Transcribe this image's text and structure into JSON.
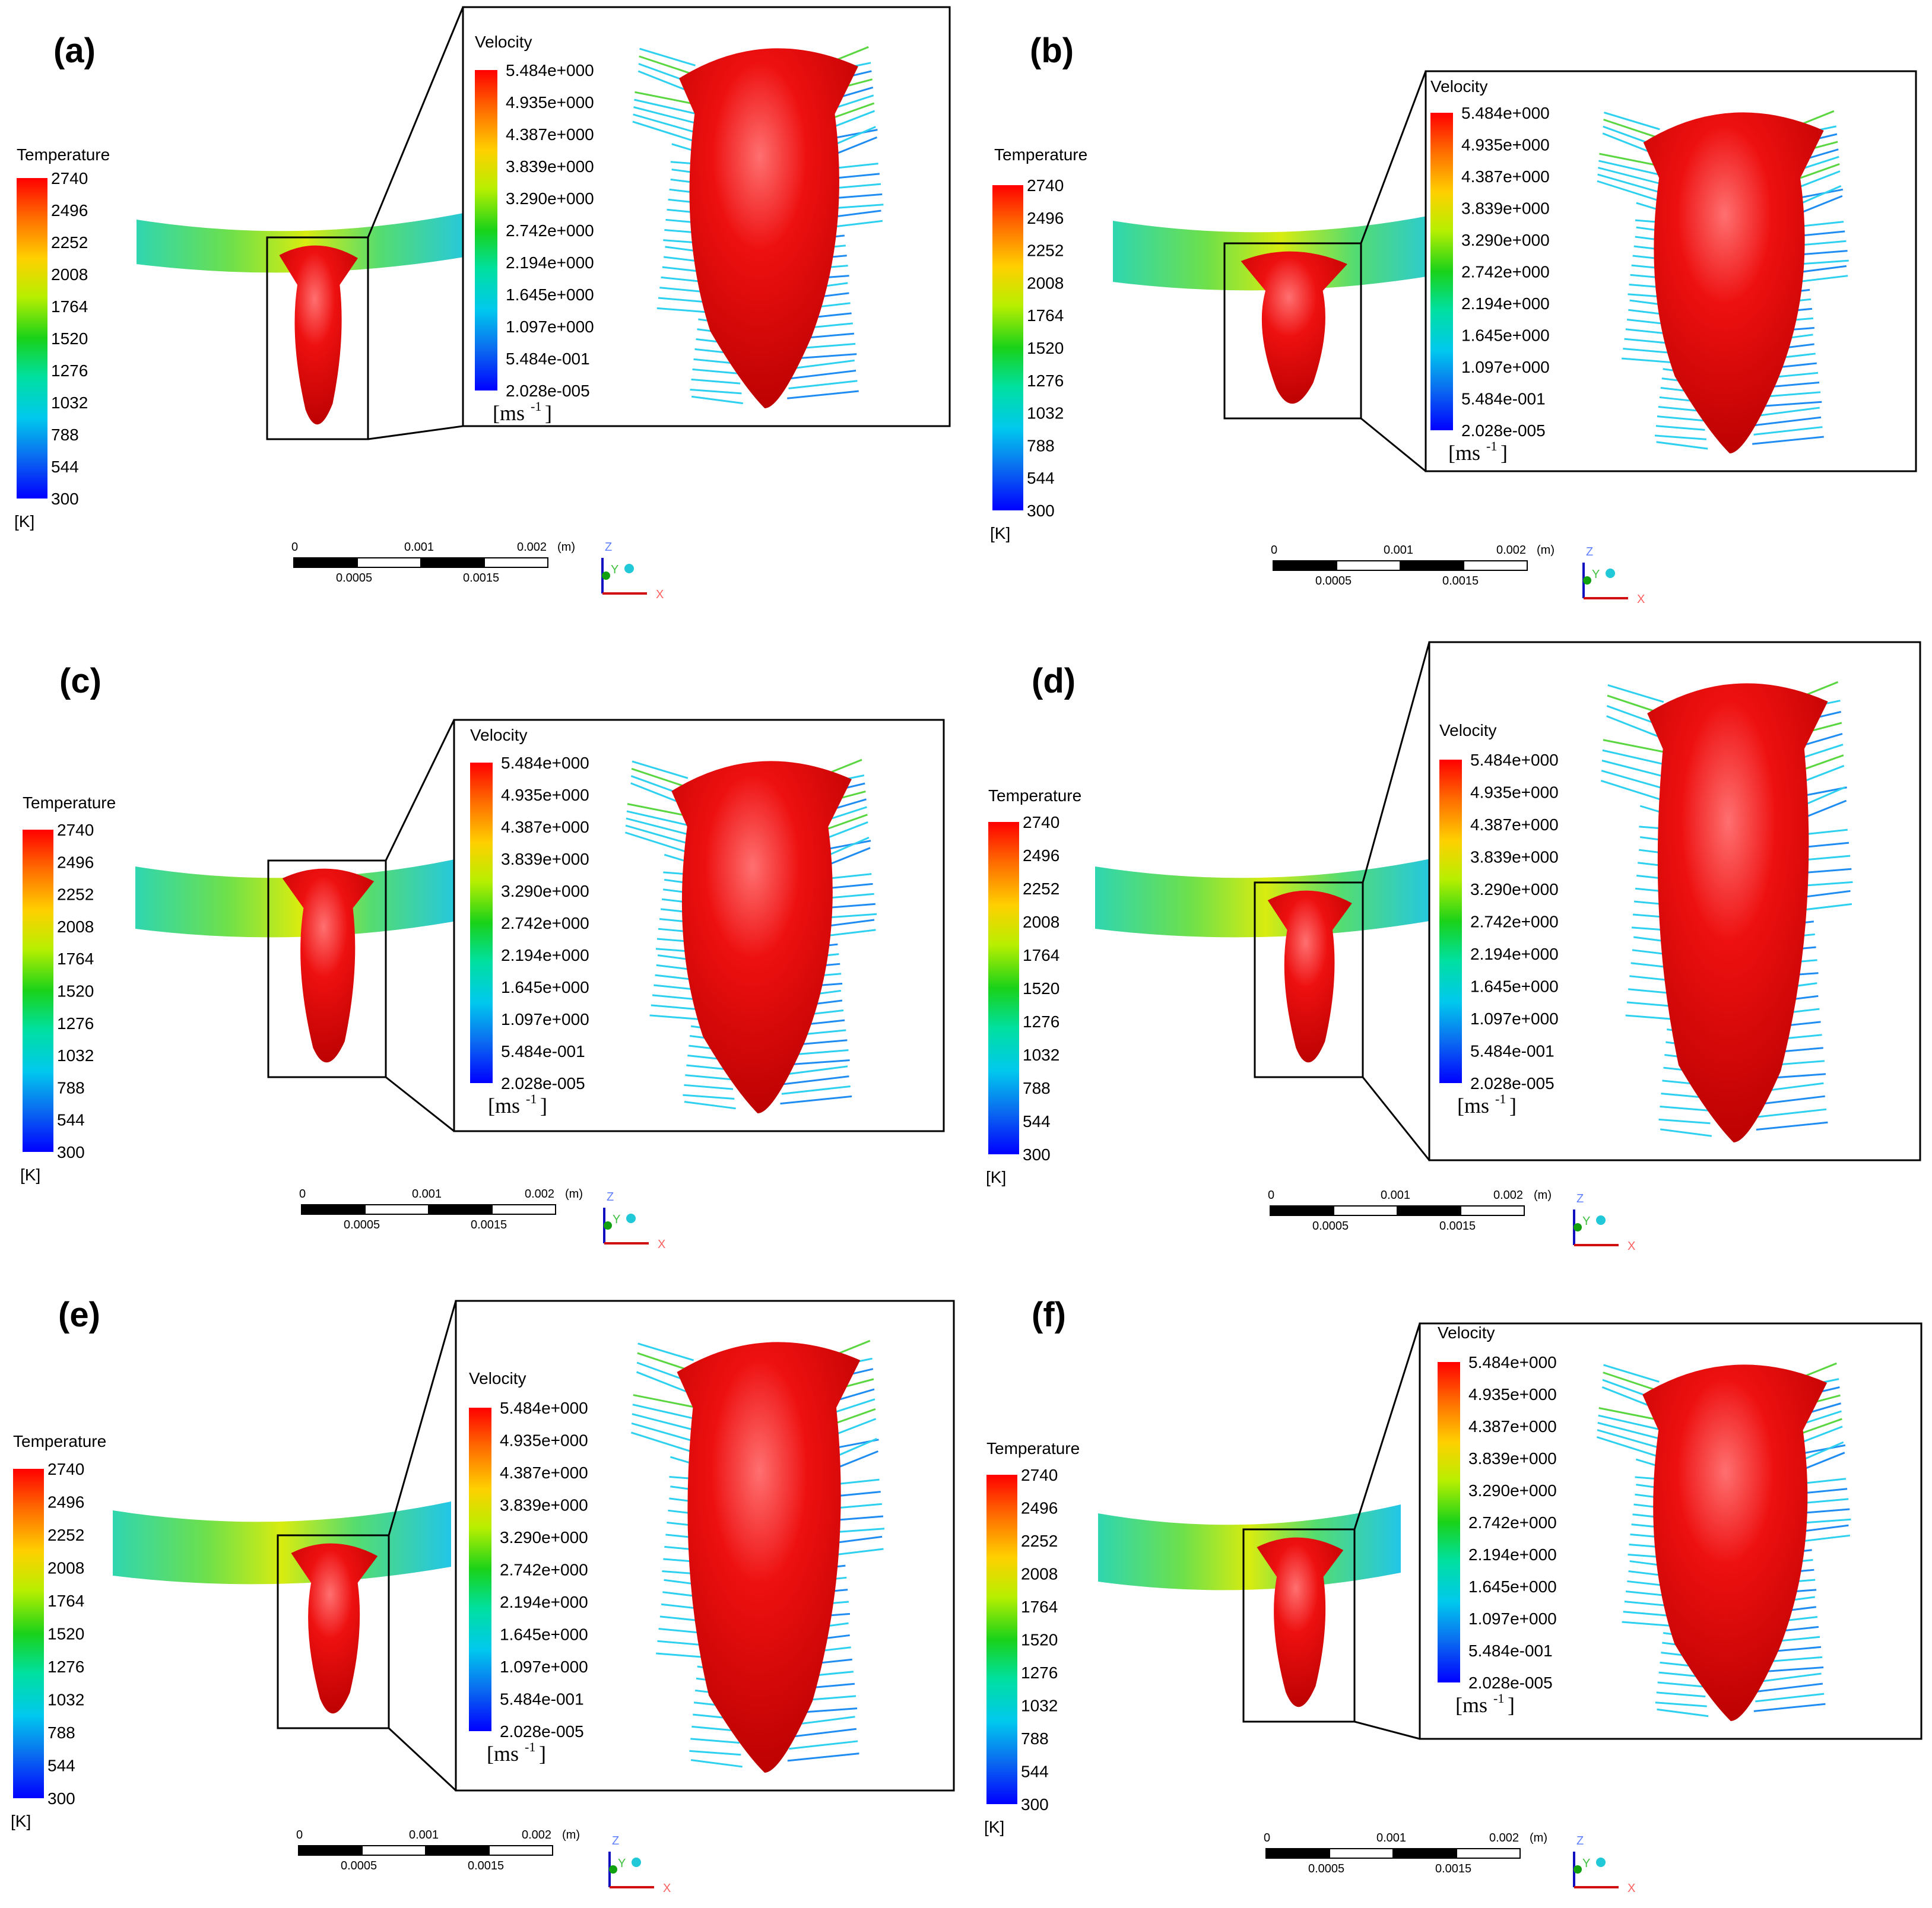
{
  "temperature_legend": {
    "title": "Temperature",
    "unit": "[K]",
    "values": [
      "2740",
      "2496",
      "2252",
      "2008",
      "1764",
      "1520",
      "1276",
      "1032",
      "788",
      "544",
      "300"
    ]
  },
  "velocity_legend": {
    "title": "Velocity",
    "unit": "[ms",
    "unit_sup": "-1",
    "unit_close": "]",
    "values": [
      "5.484e+000",
      "4.935e+000",
      "4.387e+000",
      "3.839e+000",
      "3.290e+000",
      "2.742e+000",
      "2.194e+000",
      "1.645e+000",
      "1.097e+000",
      "5.484e-001",
      "2.028e-005"
    ]
  },
  "scale_bar": {
    "top_labels": [
      "0",
      "0.001",
      "0.002"
    ],
    "top_unit": "(m)",
    "bottom_labels": [
      "0.0005",
      "0.0015"
    ]
  },
  "axis_triad": {
    "z": "Z",
    "y": "Y",
    "x": "X"
  },
  "panels": [
    {
      "label": "(a)"
    },
    {
      "label": "(b)"
    },
    {
      "label": "(c)"
    },
    {
      "label": "(d)"
    },
    {
      "label": "(e)"
    },
    {
      "label": "(f)"
    }
  ]
}
